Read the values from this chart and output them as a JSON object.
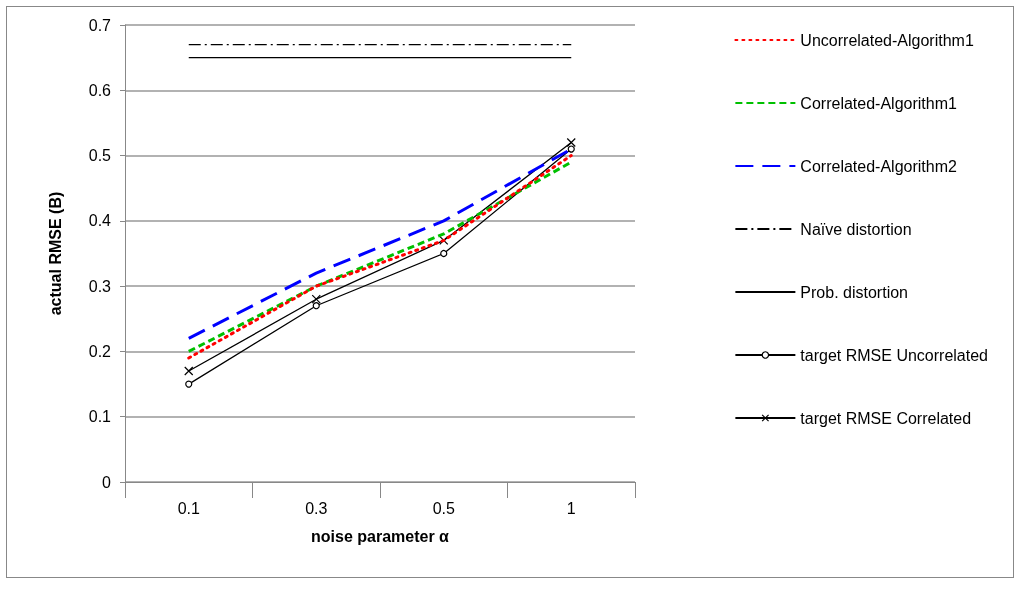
{
  "chart_data": {
    "type": "line",
    "xlabel": "noise parameter α",
    "ylabel": "actual RMSE (B)",
    "categories": [
      "0.1",
      "0.3",
      "0.5",
      "1"
    ],
    "series": [
      {
        "name": "Uncorrelated-Algorithm1",
        "color": "#ff0000",
        "line_style": "dotted",
        "marker": "none",
        "values": [
          0.19,
          0.3,
          0.37,
          0.5
        ]
      },
      {
        "name": "Correlated-Algorithm1",
        "color": "#00c000",
        "line_style": "dashed",
        "marker": "none",
        "values": [
          0.2,
          0.3,
          0.38,
          0.49
        ]
      },
      {
        "name": "Correlated-Algorithm2",
        "color": "#0000ff",
        "line_style": "dashed",
        "marker": "none",
        "values": [
          0.22,
          0.32,
          0.4,
          0.51
        ]
      },
      {
        "name": "Naïve distortion",
        "color": "#000000",
        "line_style": "dashdot",
        "marker": "none",
        "values": [
          0.67,
          0.67,
          0.67,
          0.67
        ]
      },
      {
        "name": "Prob. distortion",
        "color": "#000000",
        "line_style": "solid",
        "marker": "none",
        "values": [
          0.65,
          0.65,
          0.65,
          0.65
        ]
      },
      {
        "name": "target RMSE Uncorrelated",
        "color": "#000000",
        "line_style": "solid",
        "marker": "circle",
        "values": [
          0.15,
          0.27,
          0.35,
          0.51
        ]
      },
      {
        "name": "target RMSE Correlated",
        "color": "#000000",
        "line_style": "solid",
        "marker": "cross",
        "values": [
          0.17,
          0.28,
          0.37,
          0.52
        ]
      }
    ],
    "ylim": [
      0,
      0.7
    ],
    "yticks": [
      0,
      0.1,
      0.2,
      0.3,
      0.4,
      0.5,
      0.6,
      0.7
    ],
    "grid": "y",
    "legend": "right"
  }
}
